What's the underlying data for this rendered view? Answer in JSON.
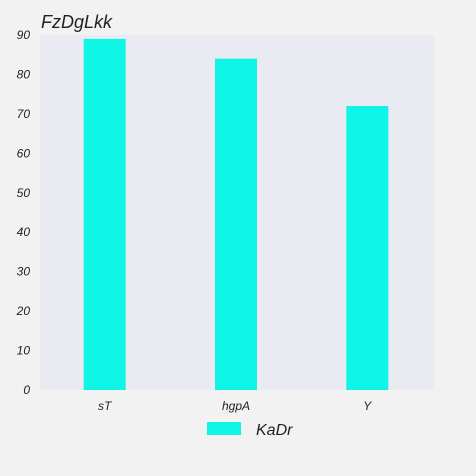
{
  "chart_data": {
    "type": "bar",
    "title": "FzDgLkk",
    "xlabel": "",
    "ylabel": "",
    "categories": [
      "sT",
      "hgpA",
      "Y"
    ],
    "series": [
      {
        "name": "KaDr",
        "values": [
          89,
          84,
          72
        ],
        "color": "#0ff5e6"
      }
    ],
    "ylim": [
      0,
      90
    ],
    "yticks": [
      0,
      10,
      20,
      30,
      40,
      50,
      60,
      70,
      80,
      90
    ],
    "grid": false,
    "legend_position": "bottom-center",
    "plot_background": "#eaeaf2",
    "page_background": "#f2f2f2"
  }
}
